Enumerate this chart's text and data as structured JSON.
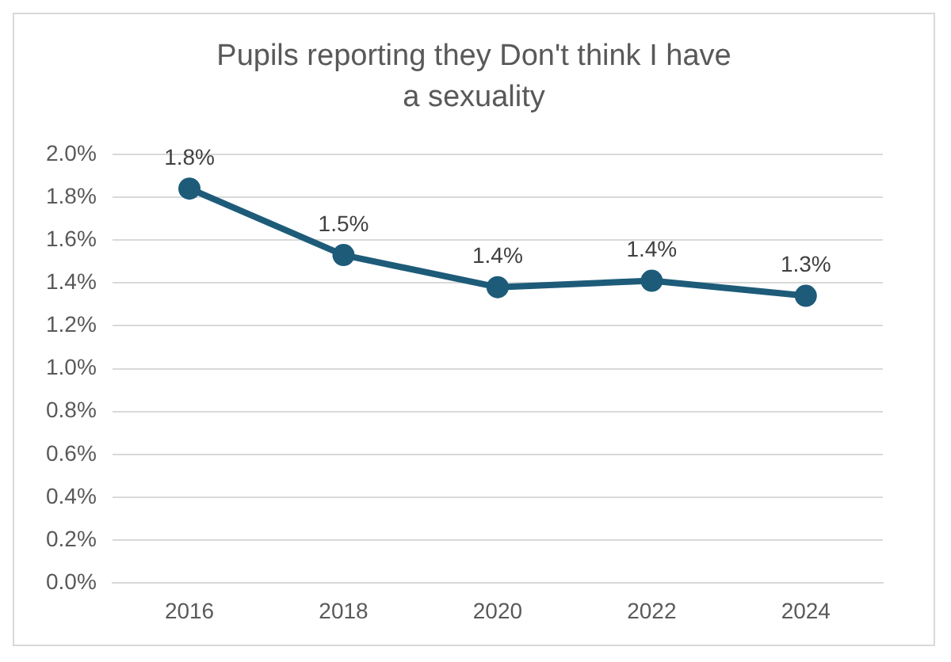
{
  "chart_data": {
    "type": "line",
    "title": "Pupils reporting they Don't think I have a sexuality",
    "categories": [
      "2016",
      "2018",
      "2020",
      "2022",
      "2024"
    ],
    "values": [
      1.84,
      1.53,
      1.38,
      1.41,
      1.34
    ],
    "value_labels": [
      "1.8%",
      "1.5%",
      "1.4%",
      "1.4%",
      "1.3%"
    ],
    "color": "#1d5b79",
    "ylim": [
      0,
      2.0
    ],
    "yticks": [
      {
        "value": 0,
        "label": "0.0%"
      },
      {
        "value": 0.2,
        "label": "0.2%"
      },
      {
        "value": 0.4,
        "label": "0.4%"
      },
      {
        "value": 0.6,
        "label": "0.6%"
      },
      {
        "value": 0.8,
        "label": "0.8%"
      },
      {
        "value": 1.0,
        "label": "1.0%"
      },
      {
        "value": 1.2,
        "label": "1.2%"
      },
      {
        "value": 1.4,
        "label": "1.4%"
      },
      {
        "value": 1.6,
        "label": "1.6%"
      },
      {
        "value": 1.8,
        "label": "1.8%"
      },
      {
        "value": 2.0,
        "label": "2.0%"
      }
    ],
    "grid": "y",
    "legend": false,
    "marker": "circle",
    "line_style": "solid"
  }
}
